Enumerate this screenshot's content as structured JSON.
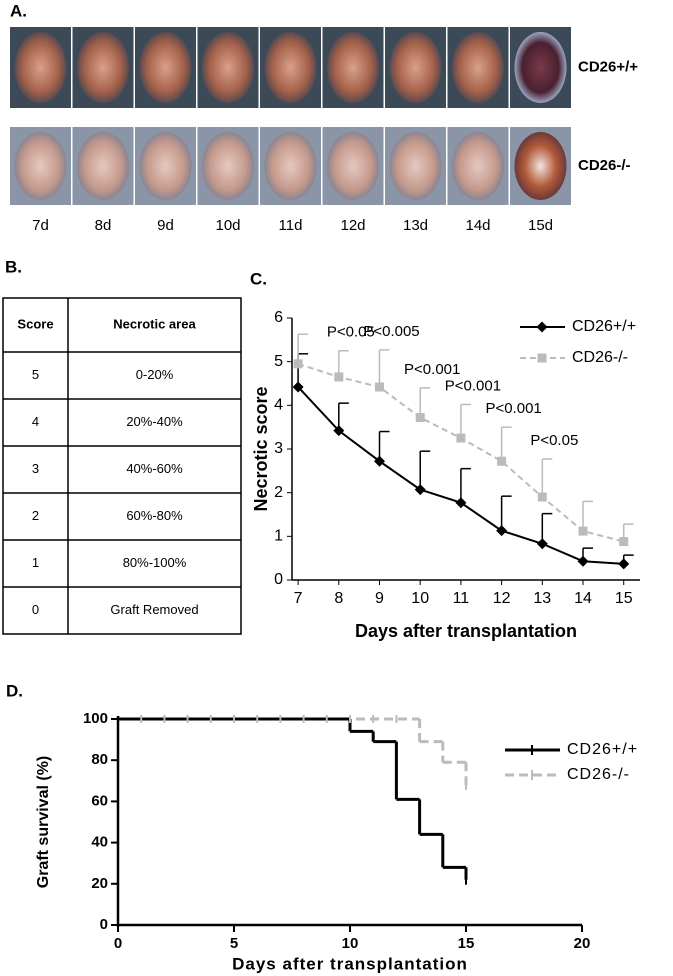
{
  "panel_a": {
    "label": "A.",
    "rows": [
      "CD26+/+",
      "CD26-/-"
    ],
    "days": [
      "7d",
      "8d",
      "9d",
      "10d",
      "11d",
      "12d",
      "13d",
      "14d",
      "15d"
    ]
  },
  "panel_b": {
    "label": "B.",
    "header": [
      "Score",
      "Necrotic area"
    ],
    "rows": [
      [
        5,
        "0-20%"
      ],
      [
        4,
        "20%-40%"
      ],
      [
        3,
        "40%-60%"
      ],
      [
        2,
        "60%-80%"
      ],
      [
        1,
        "80%-100%"
      ],
      [
        0,
        "Graft Removed"
      ]
    ]
  },
  "chart_data": [
    {
      "type": "line",
      "label": "C.",
      "x_label": "Days after transplantation",
      "y_label": "Necrotic score",
      "x": [
        7,
        8,
        9,
        10,
        11,
        12,
        13,
        14,
        15
      ],
      "xlim": [
        6.85,
        15.4
      ],
      "xticks": [
        7,
        8,
        9,
        10,
        11,
        12,
        13,
        14,
        15
      ],
      "ylim": [
        0,
        6
      ],
      "yticks": [
        0,
        1,
        2,
        3,
        4,
        5,
        6
      ],
      "legend": "top-right",
      "series": [
        {
          "name": "CD26+/+",
          "color": "#000000",
          "marker": "diamond",
          "dash": false,
          "values": [
            4.42,
            3.42,
            2.72,
            2.07,
            1.77,
            1.13,
            0.83,
            0.43,
            0.37
          ],
          "errors": [
            0.76,
            0.63,
            0.68,
            0.88,
            0.78,
            0.79,
            0.69,
            0.3,
            0.2
          ]
        },
        {
          "name": "CD26-/-",
          "color": "#bbbbbb",
          "marker": "square",
          "dash": true,
          "values": [
            4.95,
            4.65,
            4.42,
            3.72,
            3.25,
            2.72,
            1.9,
            1.12,
            0.88
          ],
          "errors": [
            0.68,
            0.6,
            0.85,
            0.68,
            0.77,
            0.78,
            0.87,
            0.68,
            0.4
          ]
        }
      ],
      "annotations": [
        {
          "x": 8,
          "text": "P<0.05"
        },
        {
          "x": 9,
          "text": "P<0.005"
        },
        {
          "x": 10,
          "text": "P<0.001"
        },
        {
          "x": 11,
          "text": "P<0.001"
        },
        {
          "x": 12,
          "text": "P<0.001"
        },
        {
          "x": 13,
          "text": "P<0.05"
        }
      ]
    },
    {
      "type": "step",
      "label": "D.",
      "x_label": "Days after transplantation",
      "y_label": "Graft survival (%)",
      "xlim": [
        0,
        20
      ],
      "xticks": [
        0,
        5,
        10,
        15,
        20
      ],
      "ylim": [
        0,
        100
      ],
      "yticks": [
        0,
        20,
        40,
        60,
        80,
        100
      ],
      "legend": "top-right",
      "series": [
        {
          "name": "CD26+/+",
          "color": "#000000",
          "dash": false,
          "x": [
            0,
            10,
            11,
            12,
            13,
            14,
            15
          ],
          "values": [
            100,
            94,
            89,
            61,
            44,
            28,
            22
          ]
        },
        {
          "name": "CD26-/-",
          "color": "#bbbbbb",
          "dash": true,
          "x": [
            0,
            13,
            14,
            15
          ],
          "values": [
            100,
            89,
            79,
            68
          ]
        }
      ]
    }
  ]
}
